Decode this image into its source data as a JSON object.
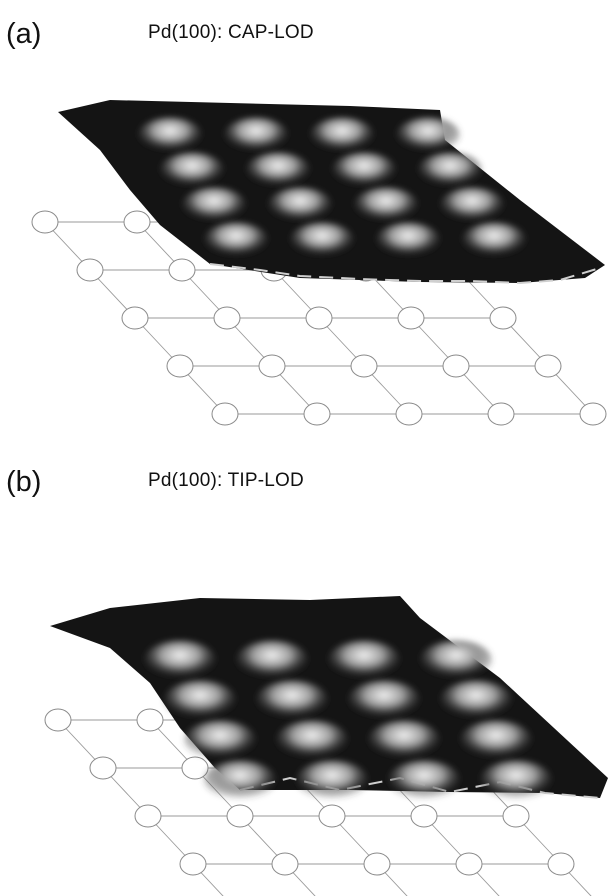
{
  "panels": [
    {
      "id": "a",
      "letter": "(a)",
      "title": "Pd(100): CAP-LOD"
    },
    {
      "id": "b",
      "letter": "(b)",
      "title": "Pd(100): TIP-LOD"
    }
  ],
  "lattice": {
    "rows": 5,
    "cols": 5,
    "atom_color": "#ffffff",
    "line_color": "#9a9a9a"
  },
  "surface": {
    "rows": 4,
    "cols": 4,
    "dark_color": "#141414",
    "bright_color": "#f2f2f2"
  }
}
